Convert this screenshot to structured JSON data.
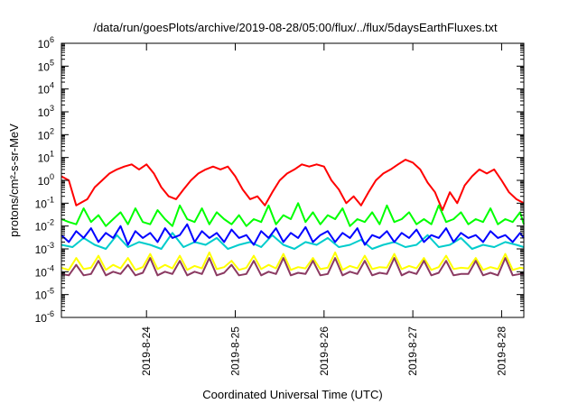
{
  "chart_data": {
    "type": "line",
    "title": "/data/run/goesPlots/archive/2019-08-28/05:00/flux/../flux/5daysEarthFluxes.txt",
    "xlabel": "Coordinated Universal Time (UTC)",
    "ylabel": "protons/cm²-s-sr-MeV",
    "yscale": "log",
    "ylim": [
      1e-06,
      1000000.0
    ],
    "xlim": [
      "2019-08-23T01:00",
      "2019-08-28T06:00"
    ],
    "grid": false,
    "y_ticks": [
      {
        "value": 1e-06,
        "base": "10",
        "exp": "-6"
      },
      {
        "value": 1e-05,
        "base": "10",
        "exp": "-5"
      },
      {
        "value": 0.0001,
        "base": "10",
        "exp": "-4"
      },
      {
        "value": 0.001,
        "base": "10",
        "exp": "-3"
      },
      {
        "value": 0.01,
        "base": "10",
        "exp": "-2"
      },
      {
        "value": 0.1,
        "base": "10",
        "exp": "-1"
      },
      {
        "value": 1,
        "base": "10",
        "exp": "0"
      },
      {
        "value": 10,
        "base": "10",
        "exp": "1"
      },
      {
        "value": 100,
        "base": "10",
        "exp": "2"
      },
      {
        "value": 1000,
        "base": "10",
        "exp": "3"
      },
      {
        "value": 10000,
        "base": "10",
        "exp": "4"
      },
      {
        "value": 100000,
        "base": "10",
        "exp": "5"
      },
      {
        "value": 1000000,
        "base": "10",
        "exp": "6"
      }
    ],
    "x_ticks": [
      "2019-8-24",
      "2019-8-25",
      "2019-8-26",
      "2019-8-27",
      "2019-8-28"
    ],
    "series": [
      {
        "color": "#ff0000",
        "x": [
          "2019-08-23T01:00",
          "2019-08-23T03:00",
          "2019-08-23T05:00",
          "2019-08-23T08:00",
          "2019-08-23T10:00",
          "2019-08-23T12:00",
          "2019-08-23T14:00",
          "2019-08-23T16:00",
          "2019-08-23T18:00",
          "2019-08-23T20:00",
          "2019-08-23T22:00",
          "2019-08-24T00:00",
          "2019-08-24T02:00",
          "2019-08-24T04:00",
          "2019-08-24T06:00",
          "2019-08-24T08:00",
          "2019-08-24T10:00",
          "2019-08-24T12:00",
          "2019-08-24T14:00",
          "2019-08-24T16:00",
          "2019-08-24T18:00",
          "2019-08-24T20:00",
          "2019-08-24T22:00",
          "2019-08-25T00:00",
          "2019-08-25T02:00",
          "2019-08-25T04:00",
          "2019-08-25T06:00",
          "2019-08-25T08:00",
          "2019-08-25T10:00",
          "2019-08-25T12:00",
          "2019-08-25T14:00",
          "2019-08-25T16:00",
          "2019-08-25T18:00",
          "2019-08-25T20:00",
          "2019-08-25T22:00",
          "2019-08-26T00:00",
          "2019-08-26T02:00",
          "2019-08-26T04:00",
          "2019-08-26T06:00",
          "2019-08-26T08:00",
          "2019-08-26T10:00",
          "2019-08-26T12:00",
          "2019-08-26T14:00",
          "2019-08-26T16:00",
          "2019-08-26T18:00",
          "2019-08-26T20:00",
          "2019-08-26T22:00",
          "2019-08-27T00:00",
          "2019-08-27T02:00",
          "2019-08-27T04:00",
          "2019-08-27T06:00",
          "2019-08-27T08:00",
          "2019-08-27T10:00",
          "2019-08-27T12:00",
          "2019-08-27T14:00",
          "2019-08-27T16:00",
          "2019-08-27T18:00",
          "2019-08-27T20:00",
          "2019-08-27T22:00",
          "2019-08-28T00:00",
          "2019-08-28T02:00",
          "2019-08-28T04:00",
          "2019-08-28T06:00"
        ],
        "values": [
          1.5,
          1.0,
          0.08,
          0.15,
          0.5,
          1.0,
          2.0,
          3.0,
          4.0,
          5.0,
          3.0,
          5.0,
          2.0,
          0.5,
          0.2,
          0.15,
          0.4,
          1.0,
          2.0,
          3.0,
          4.0,
          3.0,
          4.0,
          1.5,
          0.4,
          0.15,
          0.2,
          0.08,
          0.3,
          1.0,
          2.0,
          3.0,
          5.0,
          4.0,
          5.0,
          4.0,
          1.0,
          0.4,
          0.1,
          0.2,
          0.08,
          0.3,
          1.0,
          2.0,
          3.0,
          5.0,
          8.0,
          6.0,
          3.0,
          0.8,
          0.3,
          0.05,
          0.3,
          0.1,
          0.6,
          1.5,
          3.0,
          2.0,
          3.0,
          1.0,
          0.3,
          0.15,
          0.1
        ]
      },
      {
        "color": "#00ff00",
        "x": [
          "2019-08-23T01:00",
          "2019-08-23T03:00",
          "2019-08-23T05:00",
          "2019-08-23T07:00",
          "2019-08-23T09:00",
          "2019-08-23T11:00",
          "2019-08-23T13:00",
          "2019-08-23T15:00",
          "2019-08-23T17:00",
          "2019-08-23T19:00",
          "2019-08-23T21:00",
          "2019-08-23T23:00",
          "2019-08-24T01:00",
          "2019-08-24T03:00",
          "2019-08-24T05:00",
          "2019-08-24T07:00",
          "2019-08-24T09:00",
          "2019-08-24T11:00",
          "2019-08-24T13:00",
          "2019-08-24T15:00",
          "2019-08-24T17:00",
          "2019-08-24T19:00",
          "2019-08-24T21:00",
          "2019-08-24T23:00",
          "2019-08-25T01:00",
          "2019-08-25T03:00",
          "2019-08-25T05:00",
          "2019-08-25T07:00",
          "2019-08-25T09:00",
          "2019-08-25T11:00",
          "2019-08-25T13:00",
          "2019-08-25T15:00",
          "2019-08-25T17:00",
          "2019-08-25T19:00",
          "2019-08-25T21:00",
          "2019-08-25T23:00",
          "2019-08-26T01:00",
          "2019-08-26T03:00",
          "2019-08-26T05:00",
          "2019-08-26T07:00",
          "2019-08-26T09:00",
          "2019-08-26T11:00",
          "2019-08-26T13:00",
          "2019-08-26T15:00",
          "2019-08-26T17:00",
          "2019-08-26T19:00",
          "2019-08-26T21:00",
          "2019-08-26T23:00",
          "2019-08-27T01:00",
          "2019-08-27T03:00",
          "2019-08-27T05:00",
          "2019-08-27T07:00",
          "2019-08-27T09:00",
          "2019-08-27T11:00",
          "2019-08-27T13:00",
          "2019-08-27T15:00",
          "2019-08-27T17:00",
          "2019-08-27T19:00",
          "2019-08-27T21:00",
          "2019-08-27T23:00",
          "2019-08-28T01:00",
          "2019-08-28T03:00",
          "2019-08-28T05:00",
          "2019-08-28T06:00"
        ],
        "values": [
          0.02,
          0.015,
          0.012,
          0.06,
          0.015,
          0.03,
          0.01,
          0.02,
          0.04,
          0.012,
          0.06,
          0.015,
          0.012,
          0.05,
          0.02,
          0.01,
          0.08,
          0.02,
          0.015,
          0.06,
          0.012,
          0.04,
          0.02,
          0.012,
          0.03,
          0.01,
          0.02,
          0.015,
          0.08,
          0.012,
          0.03,
          0.02,
          0.1,
          0.015,
          0.04,
          0.012,
          0.03,
          0.02,
          0.06,
          0.01,
          0.02,
          0.015,
          0.04,
          0.012,
          0.08,
          0.015,
          0.02,
          0.04,
          0.012,
          0.02,
          0.012,
          0.08,
          0.015,
          0.02,
          0.04,
          0.012,
          0.02,
          0.015,
          0.06,
          0.012,
          0.02,
          0.015,
          0.04,
          0.012
        ]
      },
      {
        "color": "#00cccc",
        "x": [
          "2019-08-23T01:00",
          "2019-08-23T04:00",
          "2019-08-23T07:00",
          "2019-08-23T10:00",
          "2019-08-23T13:00",
          "2019-08-23T16:00",
          "2019-08-23T19:00",
          "2019-08-23T22:00",
          "2019-08-24T01:00",
          "2019-08-24T04:00",
          "2019-08-24T07:00",
          "2019-08-24T10:00",
          "2019-08-24T13:00",
          "2019-08-24T16:00",
          "2019-08-24T19:00",
          "2019-08-24T22:00",
          "2019-08-25T01:00",
          "2019-08-25T04:00",
          "2019-08-25T07:00",
          "2019-08-25T10:00",
          "2019-08-25T13:00",
          "2019-08-25T16:00",
          "2019-08-25T19:00",
          "2019-08-25T22:00",
          "2019-08-26T01:00",
          "2019-08-26T04:00",
          "2019-08-26T07:00",
          "2019-08-26T10:00",
          "2019-08-26T13:00",
          "2019-08-26T16:00",
          "2019-08-26T19:00",
          "2019-08-26T22:00",
          "2019-08-27T01:00",
          "2019-08-27T04:00",
          "2019-08-27T07:00",
          "2019-08-27T10:00",
          "2019-08-27T13:00",
          "2019-08-27T16:00",
          "2019-08-27T19:00",
          "2019-08-27T22:00",
          "2019-08-28T01:00",
          "2019-08-28T04:00",
          "2019-08-28T06:00"
        ],
        "values": [
          0.0015,
          0.0012,
          0.003,
          0.0015,
          0.001,
          0.004,
          0.0012,
          0.002,
          0.0015,
          0.001,
          0.005,
          0.0012,
          0.002,
          0.0015,
          0.003,
          0.001,
          0.0015,
          0.002,
          0.0012,
          0.004,
          0.0015,
          0.001,
          0.002,
          0.0015,
          0.003,
          0.0012,
          0.0015,
          0.0025,
          0.001,
          0.0015,
          0.002,
          0.0012,
          0.0015,
          0.004,
          0.0012,
          0.0015,
          0.003,
          0.001,
          0.0015,
          0.0012,
          0.002,
          0.0015,
          0.0012
        ]
      },
      {
        "color": "#0000ff",
        "x": [
          "2019-08-23T01:00",
          "2019-08-23T03:00",
          "2019-08-23T05:00",
          "2019-08-23T07:00",
          "2019-08-23T09:00",
          "2019-08-23T11:00",
          "2019-08-23T13:00",
          "2019-08-23T15:00",
          "2019-08-23T17:00",
          "2019-08-23T19:00",
          "2019-08-23T21:00",
          "2019-08-23T23:00",
          "2019-08-24T01:00",
          "2019-08-24T03:00",
          "2019-08-24T05:00",
          "2019-08-24T07:00",
          "2019-08-24T09:00",
          "2019-08-24T11:00",
          "2019-08-24T13:00",
          "2019-08-24T15:00",
          "2019-08-24T17:00",
          "2019-08-24T19:00",
          "2019-08-24T21:00",
          "2019-08-24T23:00",
          "2019-08-25T01:00",
          "2019-08-25T03:00",
          "2019-08-25T05:00",
          "2019-08-25T07:00",
          "2019-08-25T09:00",
          "2019-08-25T11:00",
          "2019-08-25T13:00",
          "2019-08-25T15:00",
          "2019-08-25T17:00",
          "2019-08-25T19:00",
          "2019-08-25T21:00",
          "2019-08-25T23:00",
          "2019-08-26T01:00",
          "2019-08-26T03:00",
          "2019-08-26T05:00",
          "2019-08-26T07:00",
          "2019-08-26T09:00",
          "2019-08-26T11:00",
          "2019-08-26T13:00",
          "2019-08-26T15:00",
          "2019-08-26T17:00",
          "2019-08-26T19:00",
          "2019-08-26T21:00",
          "2019-08-26T23:00",
          "2019-08-27T01:00",
          "2019-08-27T03:00",
          "2019-08-27T05:00",
          "2019-08-27T07:00",
          "2019-08-27T09:00",
          "2019-08-27T11:00",
          "2019-08-27T13:00",
          "2019-08-27T15:00",
          "2019-08-27T17:00",
          "2019-08-27T19:00",
          "2019-08-27T21:00",
          "2019-08-27T23:00",
          "2019-08-28T01:00",
          "2019-08-28T03:00",
          "2019-08-28T05:00",
          "2019-08-28T06:00"
        ],
        "values": [
          0.004,
          0.002,
          0.006,
          0.003,
          0.008,
          0.002,
          0.005,
          0.003,
          0.01,
          0.0015,
          0.006,
          0.003,
          0.005,
          0.002,
          0.008,
          0.003,
          0.004,
          0.012,
          0.002,
          0.006,
          0.003,
          0.005,
          0.002,
          0.007,
          0.003,
          0.004,
          0.0015,
          0.006,
          0.003,
          0.008,
          0.002,
          0.005,
          0.003,
          0.009,
          0.002,
          0.004,
          0.006,
          0.002,
          0.005,
          0.003,
          0.008,
          0.0015,
          0.004,
          0.003,
          0.006,
          0.002,
          0.005,
          0.003,
          0.007,
          0.002,
          0.004,
          0.003,
          0.008,
          0.002,
          0.005,
          0.003,
          0.004,
          0.002,
          0.006,
          0.003,
          0.004,
          0.002,
          0.005,
          0.003
        ]
      },
      {
        "color": "#ffff00",
        "x": [
          "2019-08-23T01:00",
          "2019-08-23T03:00",
          "2019-08-23T05:00",
          "2019-08-23T07:00",
          "2019-08-23T09:00",
          "2019-08-23T11:00",
          "2019-08-23T13:00",
          "2019-08-23T15:00",
          "2019-08-23T17:00",
          "2019-08-23T19:00",
          "2019-08-23T21:00",
          "2019-08-23T23:00",
          "2019-08-24T01:00",
          "2019-08-24T03:00",
          "2019-08-24T05:00",
          "2019-08-24T07:00",
          "2019-08-24T09:00",
          "2019-08-24T11:00",
          "2019-08-24T13:00",
          "2019-08-24T15:00",
          "2019-08-24T17:00",
          "2019-08-24T19:00",
          "2019-08-24T21:00",
          "2019-08-24T23:00",
          "2019-08-25T01:00",
          "2019-08-25T03:00",
          "2019-08-25T05:00",
          "2019-08-25T07:00",
          "2019-08-25T09:00",
          "2019-08-25T11:00",
          "2019-08-25T13:00",
          "2019-08-25T15:00",
          "2019-08-25T17:00",
          "2019-08-25T19:00",
          "2019-08-25T21:00",
          "2019-08-25T23:00",
          "2019-08-26T01:00",
          "2019-08-26T03:00",
          "2019-08-26T05:00",
          "2019-08-26T07:00",
          "2019-08-26T09:00",
          "2019-08-26T11:00",
          "2019-08-26T13:00",
          "2019-08-26T15:00",
          "2019-08-26T17:00",
          "2019-08-26T19:00",
          "2019-08-26T21:00",
          "2019-08-26T23:00",
          "2019-08-27T01:00",
          "2019-08-27T03:00",
          "2019-08-27T05:00",
          "2019-08-27T07:00",
          "2019-08-27T09:00",
          "2019-08-27T11:00",
          "2019-08-27T13:00",
          "2019-08-27T15:00",
          "2019-08-27T17:00",
          "2019-08-27T19:00",
          "2019-08-27T21:00",
          "2019-08-27T23:00",
          "2019-08-28T01:00",
          "2019-08-28T03:00",
          "2019-08-28T05:00",
          "2019-08-28T06:00"
        ],
        "values": [
          0.00015,
          0.00012,
          0.0004,
          0.00013,
          0.00015,
          0.0005,
          0.00012,
          0.0002,
          0.00014,
          0.0004,
          0.00012,
          0.00016,
          0.0006,
          0.00013,
          0.0002,
          0.00014,
          0.0005,
          0.00012,
          0.00018,
          0.00014,
          0.0007,
          0.00013,
          0.00016,
          0.0003,
          0.00012,
          0.00015,
          0.0005,
          0.00013,
          0.0002,
          0.00014,
          0.0006,
          0.00012,
          0.00016,
          0.00014,
          0.0004,
          0.00013,
          0.00015,
          0.0007,
          0.00012,
          0.00018,
          0.00014,
          0.0005,
          0.00013,
          0.00016,
          0.00015,
          0.0006,
          0.00013,
          0.00018,
          0.00014,
          0.0004,
          0.00012,
          0.00016,
          0.0005,
          0.00013,
          0.00015,
          0.00014,
          0.0004,
          0.00012,
          0.00016,
          0.00013,
          0.0006,
          0.00012,
          0.00015,
          0.00014
        ]
      },
      {
        "color": "#8b3a62",
        "x": [
          "2019-08-23T01:00",
          "2019-08-23T03:00",
          "2019-08-23T05:00",
          "2019-08-23T07:00",
          "2019-08-23T09:00",
          "2019-08-23T11:00",
          "2019-08-23T13:00",
          "2019-08-23T15:00",
          "2019-08-23T17:00",
          "2019-08-23T19:00",
          "2019-08-23T21:00",
          "2019-08-23T23:00",
          "2019-08-24T01:00",
          "2019-08-24T03:00",
          "2019-08-24T05:00",
          "2019-08-24T07:00",
          "2019-08-24T09:00",
          "2019-08-24T11:00",
          "2019-08-24T13:00",
          "2019-08-24T15:00",
          "2019-08-24T17:00",
          "2019-08-24T19:00",
          "2019-08-24T21:00",
          "2019-08-24T23:00",
          "2019-08-25T01:00",
          "2019-08-25T03:00",
          "2019-08-25T05:00",
          "2019-08-25T07:00",
          "2019-08-25T09:00",
          "2019-08-25T11:00",
          "2019-08-25T13:00",
          "2019-08-25T15:00",
          "2019-08-25T17:00",
          "2019-08-25T19:00",
          "2019-08-25T21:00",
          "2019-08-25T23:00",
          "2019-08-26T01:00",
          "2019-08-26T03:00",
          "2019-08-26T05:00",
          "2019-08-26T07:00",
          "2019-08-26T09:00",
          "2019-08-26T11:00",
          "2019-08-26T13:00",
          "2019-08-26T15:00",
          "2019-08-26T17:00",
          "2019-08-26T19:00",
          "2019-08-26T21:00",
          "2019-08-26T23:00",
          "2019-08-27T01:00",
          "2019-08-27T03:00",
          "2019-08-27T05:00",
          "2019-08-27T07:00",
          "2019-08-27T09:00",
          "2019-08-27T11:00",
          "2019-08-27T13:00",
          "2019-08-27T15:00",
          "2019-08-27T17:00",
          "2019-08-27T19:00",
          "2019-08-27T21:00",
          "2019-08-27T23:00",
          "2019-08-28T01:00",
          "2019-08-28T03:00",
          "2019-08-28T05:00",
          "2019-08-28T06:00"
        ],
        "values": [
          8e-05,
          7e-05,
          0.0002,
          7e-05,
          8e-05,
          0.0003,
          7e-05,
          0.0001,
          8e-05,
          0.0002,
          7e-05,
          9e-05,
          0.0004,
          7e-05,
          0.0001,
          8e-05,
          0.0003,
          7e-05,
          0.0001,
          8e-05,
          0.0004,
          7e-05,
          9e-05,
          0.0002,
          7e-05,
          8e-05,
          0.0003,
          7e-05,
          0.0001,
          8e-05,
          0.0004,
          7e-05,
          9e-05,
          8e-05,
          0.0003,
          7e-05,
          8e-05,
          0.0004,
          7e-05,
          0.0001,
          8e-05,
          0.0003,
          7e-05,
          9e-05,
          8e-05,
          0.0004,
          7e-05,
          0.0001,
          8e-05,
          0.0003,
          7e-05,
          9e-05,
          0.0003,
          7e-05,
          8e-05,
          8e-05,
          0.0003,
          7e-05,
          9e-05,
          7e-05,
          0.0004,
          7e-05,
          8e-05,
          8e-05
        ]
      }
    ]
  }
}
